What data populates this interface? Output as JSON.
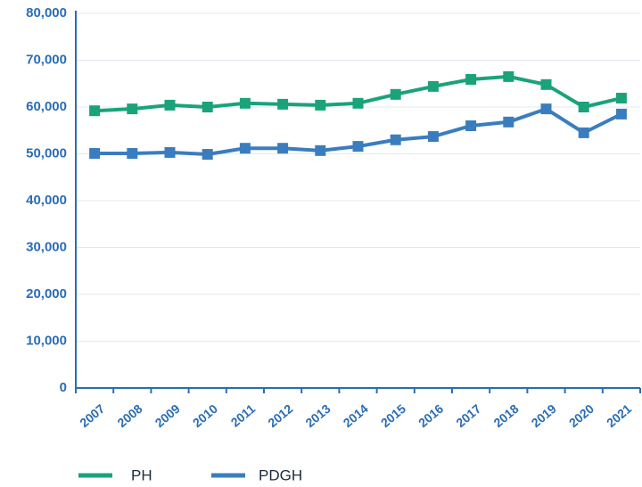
{
  "chart_data": {
    "type": "line",
    "categories": [
      "2007",
      "2008",
      "2009",
      "2010",
      "2011",
      "2012",
      "2013",
      "2014",
      "2015",
      "2016",
      "2017",
      "2018",
      "2019",
      "2020",
      "2021"
    ],
    "series": [
      {
        "name": "PH",
        "color": "#1aa37a",
        "values": [
          59200,
          59600,
          60400,
          60000,
          60800,
          60600,
          60400,
          60800,
          62700,
          64400,
          65900,
          66500,
          64800,
          60000,
          61900
        ]
      },
      {
        "name": "PDGH",
        "color": "#3a7dbf",
        "values": [
          50100,
          50100,
          50300,
          49900,
          51200,
          51200,
          50700,
          51600,
          53000,
          53700,
          56000,
          56800,
          59600,
          54500,
          58500
        ]
      }
    ],
    "ylim": [
      0,
      80000
    ],
    "yticks": [
      0,
      {
        "value": 10000,
        "label": "10,000"
      },
      {
        "value": 20000,
        "label": "20,000"
      },
      {
        "value": 30000,
        "label": "30,000"
      },
      {
        "value": 40000,
        "label": "40,000"
      },
      {
        "value": 50000,
        "label": "50,000"
      },
      {
        "value": 60000,
        "label": "60,000"
      },
      {
        "value": 70000,
        "label": "70,000"
      },
      {
        "value": 80000,
        "label": "80,000"
      }
    ],
    "grid": true,
    "legend": "bottom"
  }
}
